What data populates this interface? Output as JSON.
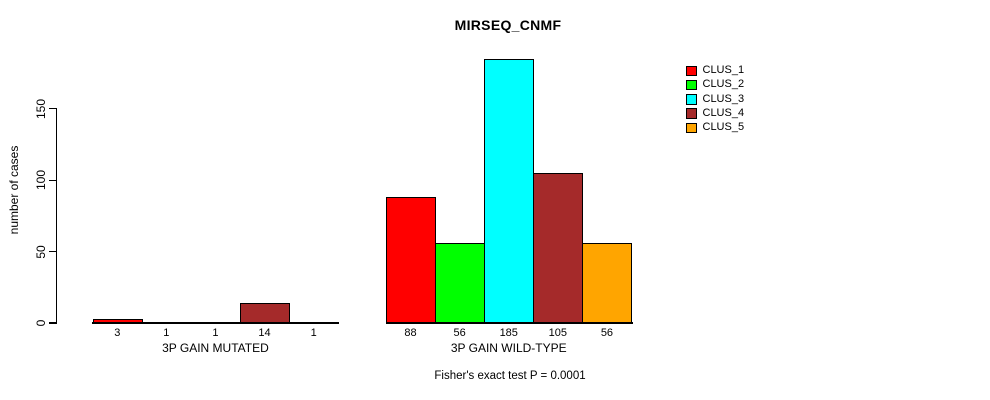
{
  "chart_data": {
    "type": "bar",
    "title": "MIRSEQ_CNMF",
    "ylabel": "number of cases",
    "xlabel": "",
    "yticks": [
      0,
      50,
      100,
      150
    ],
    "ylim": [
      0,
      192
    ],
    "grid": false,
    "legend_position": "top-right",
    "categories": [
      "3P GAIN MUTATED",
      "3P GAIN WILD-TYPE"
    ],
    "series": [
      {
        "name": "CLUS_1",
        "color": "#ff0000",
        "values": [
          3,
          88
        ]
      },
      {
        "name": "CLUS_2",
        "color": "#00ff00",
        "values": [
          1,
          56
        ]
      },
      {
        "name": "CLUS_3",
        "color": "#00ffff",
        "values": [
          1,
          185
        ]
      },
      {
        "name": "CLUS_4",
        "color": "#a52a2a",
        "values": [
          14,
          105
        ]
      },
      {
        "name": "CLUS_5",
        "color": "#ffa500",
        "values": [
          1,
          56
        ]
      }
    ],
    "bar_value_labels": {
      "3P GAIN MUTATED": [
        "3",
        "1",
        "1",
        "14",
        "1"
      ],
      "3P GAIN WILD-TYPE": [
        "88",
        "56",
        "185",
        "105",
        "56"
      ]
    },
    "annotation": "Fisher's exact test P = 0.0001",
    "background_color": "#ffffff",
    "axis_color": "#000000"
  }
}
